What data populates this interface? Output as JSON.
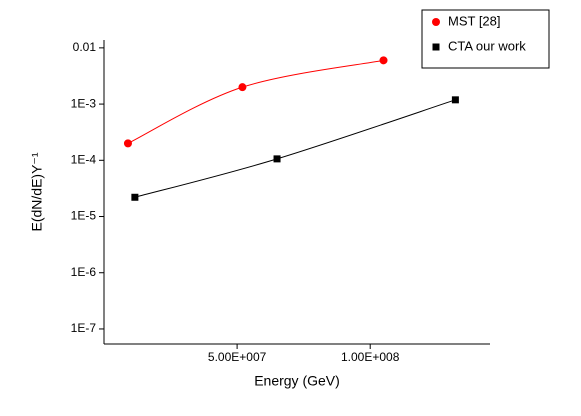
{
  "chart_data": {
    "type": "line",
    "xlabel": "Energy (GeV)",
    "ylabel": "E(dN/dE)Y⁻¹",
    "xlim": [
      0,
      145000000
    ],
    "ylim": [
      5.4e-08,
      0.0138
    ],
    "ylog": true,
    "xticks": [
      {
        "value": 50000000,
        "label": "5.00E+007"
      },
      {
        "value": 100000000,
        "label": "1.00E+008"
      }
    ],
    "yticks": [
      {
        "value": 1e-07,
        "label": "1E-7"
      },
      {
        "value": 1e-06,
        "label": "1E-6"
      },
      {
        "value": 1e-05,
        "label": "1E-5"
      },
      {
        "value": 0.0001,
        "label": "1E-4"
      },
      {
        "value": 0.001,
        "label": "1E-3"
      },
      0.01
    ],
    "legend": "top-right",
    "series": [
      {
        "name": "MST [28]",
        "color": "#ff0000",
        "marker": "circle",
        "x": [
          9000000,
          52000000,
          105000000
        ],
        "values": [
          0.0002,
          0.002,
          0.006
        ]
      },
      {
        "name": "CTA our work",
        "color": "#000000",
        "marker": "square",
        "x": [
          11600000,
          65000000,
          132000000
        ],
        "values": [
          2.2e-05,
          0.000106,
          0.00119
        ]
      }
    ]
  }
}
